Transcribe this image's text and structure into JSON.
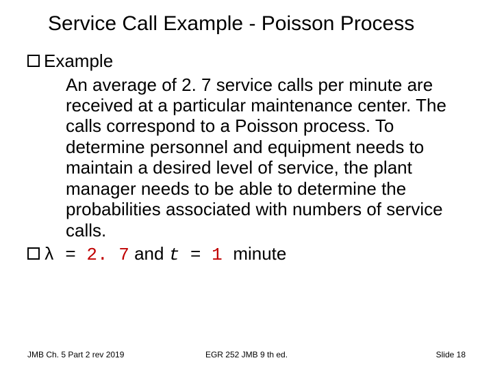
{
  "title": "Service Call Example - Poisson Process",
  "bullets": {
    "example_label": "Example",
    "paragraph": "An average of 2. 7 service calls per minute are received at a particular maintenance center. The calls correspond to a Poisson process. To determine personnel and equipment needs to maintain a desired level of service, the plant manager needs to be able to determine the probabilities associated with numbers of service calls.",
    "lambda": {
      "symbol": "λ",
      "eq1": " = ",
      "val1": "2. 7",
      "and": " and ",
      "t": "t",
      "eq2": " = ",
      "val2": "1 ",
      "unit": " minute"
    }
  },
  "footer": {
    "left": "JMB Ch. 5 Part 2 rev 2019",
    "center": "EGR 252 JMB 9 th ed.",
    "right": "Slide 18"
  },
  "colors": {
    "background": "#ffffff",
    "text": "#000000",
    "accent": "#c00000"
  },
  "typography": {
    "title_fontsize": 30,
    "body_fontsize": 26,
    "footer_fontsize": 12,
    "mono_family": "Courier New",
    "sans_family": "Arial"
  }
}
